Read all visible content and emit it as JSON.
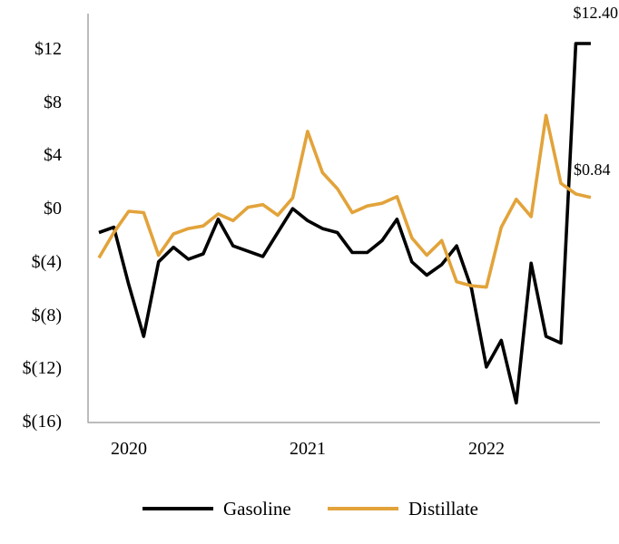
{
  "page": {
    "background": "#ffffff",
    "axis_color": "#a6a6a6",
    "text_color": "#000000"
  },
  "chart_data": {
    "type": "line",
    "title": "",
    "xlabel": "",
    "ylabel": "",
    "grid": false,
    "legend_position": "bottom",
    "ylim": [
      -16,
      14.65
    ],
    "x": [
      "Nov-2019",
      "Dec-2019",
      "Jan-2020",
      "Feb-2020",
      "Mar-2020",
      "Apr-2020",
      "May-2020",
      "Jun-2020",
      "Jul-2020",
      "Aug-2020",
      "Sep-2020",
      "Oct-2020",
      "Nov-2020",
      "Dec-2020",
      "Jan-2021",
      "Feb-2021",
      "Mar-2021",
      "Apr-2021",
      "May-2021",
      "Jun-2021",
      "Jul-2021",
      "Aug-2021",
      "Sep-2021",
      "Oct-2021",
      "Nov-2021",
      "Dec-2021",
      "Jan-2022",
      "Feb-2022",
      "Mar-2022",
      "Apr-2022",
      "May-2022",
      "Jun-2022",
      "Jul-2022",
      "Aug-2022"
    ],
    "series": [
      {
        "name": "Gasoline",
        "color": "#000000",
        "values": [
          -1.8,
          -1.4,
          -5.7,
          -9.6,
          -4.0,
          -2.9,
          -3.8,
          -3.4,
          -0.8,
          -2.8,
          -3.2,
          -3.6,
          -1.8,
          0.0,
          -0.9,
          -1.5,
          -1.8,
          -3.3,
          -3.3,
          -2.4,
          -0.8,
          -4.0,
          -5.0,
          -4.2,
          -2.8,
          -6.0,
          -11.9,
          -9.9,
          -14.6,
          -4.1,
          -9.6,
          -10.1,
          12.4,
          12.4
        ]
      },
      {
        "name": "Distillate",
        "color": "#e2a33a",
        "values": [
          -3.7,
          -1.8,
          -0.2,
          -0.3,
          -3.5,
          -1.9,
          -1.5,
          -1.3,
          -0.4,
          -0.9,
          0.1,
          0.3,
          -0.5,
          0.8,
          5.8,
          2.7,
          1.5,
          -0.3,
          0.2,
          0.4,
          0.9,
          -2.2,
          -3.5,
          -2.4,
          -5.5,
          -5.8,
          -5.9,
          -1.4,
          0.7,
          -0.6,
          7.0,
          1.9,
          1.1,
          0.84
        ]
      }
    ],
    "y_ticks": [
      {
        "label": "$12",
        "value": 12
      },
      {
        "label": "$8",
        "value": 8
      },
      {
        "label": "$4",
        "value": 4
      },
      {
        "label": "$0",
        "value": 0
      },
      {
        "label": "$(4)",
        "value": -4
      },
      {
        "label": "$(8)",
        "value": -8
      },
      {
        "label": "$(12)",
        "value": -12
      },
      {
        "label": "$(16)",
        "value": -16
      }
    ],
    "x_ticks": [
      {
        "label": "2020",
        "index": 2
      },
      {
        "label": "2021",
        "index": 14
      },
      {
        "label": "2022",
        "index": 26
      }
    ],
    "annotations": [
      {
        "text": "$12.40",
        "series": "Gasoline",
        "point": "last",
        "value": 12.4
      },
      {
        "text": "$0.84",
        "series": "Distillate",
        "point": "last",
        "value": 0.84
      }
    ]
  }
}
